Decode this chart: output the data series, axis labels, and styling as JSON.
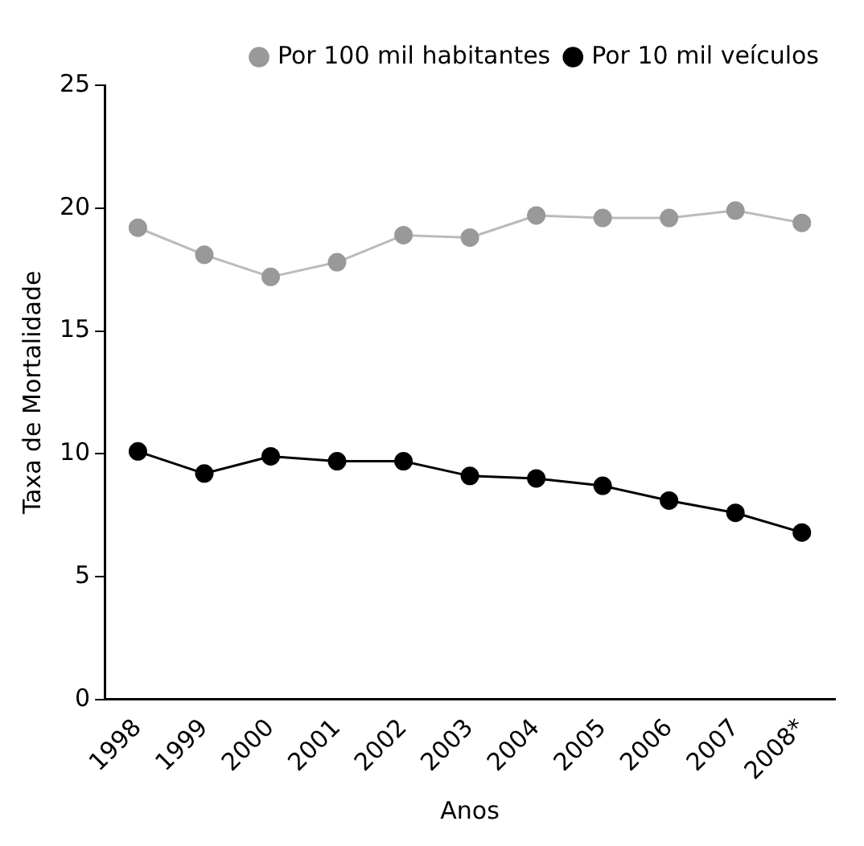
{
  "chart_data": {
    "type": "line",
    "xlabel": "Anos",
    "ylabel": "Taxa de Mortalidade",
    "categories": [
      "1998",
      "1999",
      "2000",
      "2001",
      "2002",
      "2003",
      "2004",
      "2005",
      "2006",
      "2007",
      "2008*"
    ],
    "series": [
      {
        "name": "Por 100 mil habitantes",
        "color": "#999999",
        "values": [
          19.2,
          18.1,
          17.2,
          17.8,
          18.9,
          18.8,
          19.7,
          19.6,
          19.6,
          19.9,
          19.4
        ]
      },
      {
        "name": "Por 10 mil veículos",
        "color": "#000000",
        "values": [
          10.1,
          9.2,
          9.9,
          9.7,
          9.7,
          9.1,
          9.0,
          8.7,
          8.1,
          7.6,
          6.8
        ]
      }
    ],
    "ylim": [
      0,
      25
    ],
    "yticks": [
      0,
      5,
      10,
      15,
      20,
      25
    ],
    "grid": false,
    "legend": "top right",
    "marker": "circle",
    "line_style": "solid"
  }
}
